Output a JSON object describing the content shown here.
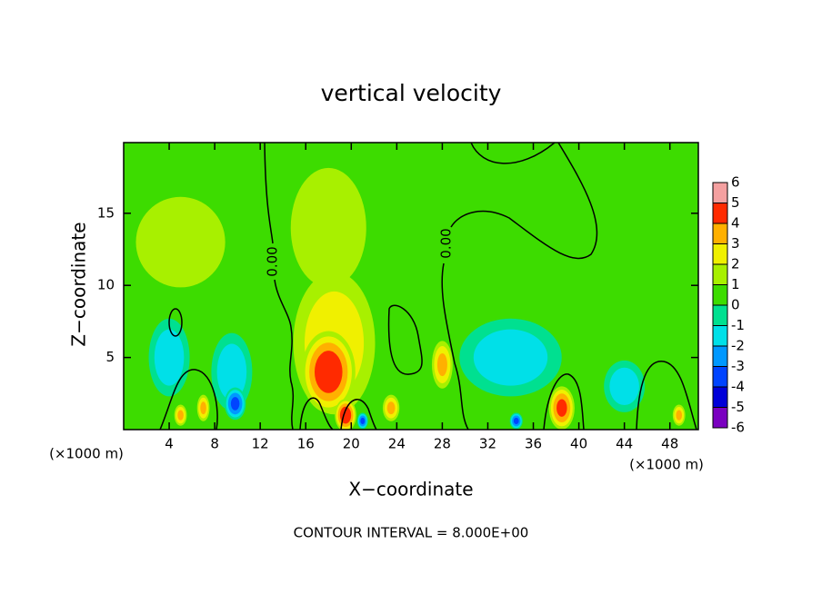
{
  "chart_data": {
    "type": "contour",
    "title": "vertical velocity",
    "xlabel": "X−coordinate",
    "ylabel": "Z−coordinate",
    "unit_label": "(×1000 m)",
    "footnote": "CONTOUR INTERVAL = 8.000E+00",
    "contour_labels": [
      "0.00",
      "0.00"
    ],
    "xlim": [
      0,
      50.5
    ],
    "xticks": [
      4,
      8,
      12,
      16,
      20,
      24,
      28,
      32,
      36,
      40,
      44,
      48
    ],
    "ylim": [
      0,
      19.9
    ],
    "yticks": [
      5,
      10,
      15
    ],
    "background_value": 0.5,
    "levels": [
      -6,
      -5,
      -4,
      -3,
      -2,
      -1,
      0,
      1,
      2,
      3,
      4,
      5,
      6
    ],
    "colors": [
      "#7a00c0",
      "#0000d8",
      "#0044ff",
      "#0098ff",
      "#00e0e8",
      "#00e090",
      "#3ddc00",
      "#a8f000",
      "#f0f000",
      "#ffb000",
      "#ff2a00",
      "#f4a0a0"
    ],
    "blobs": [
      {
        "x": 18.5,
        "z": 6,
        "value": 2.5,
        "rx": 4,
        "rz": 5.5
      },
      {
        "x": 18,
        "z": 4,
        "value": 4.5,
        "rx": 2.5,
        "rz": 3
      },
      {
        "x": 19.5,
        "z": 1,
        "value": 4.5,
        "rx": 1,
        "rz": 1.2
      },
      {
        "x": 38.5,
        "z": 1.5,
        "value": 4,
        "rx": 1.2,
        "rz": 1.6
      },
      {
        "x": 23.5,
        "z": 1.5,
        "value": 3,
        "rx": 0.8,
        "rz": 1
      },
      {
        "x": 28,
        "z": 4.5,
        "value": 3,
        "rx": 1,
        "rz": 1.8
      },
      {
        "x": 5,
        "z": 1,
        "value": 3,
        "rx": 0.6,
        "rz": 0.8
      },
      {
        "x": 7,
        "z": 1.5,
        "value": 3,
        "rx": 0.6,
        "rz": 1
      },
      {
        "x": 48.8,
        "z": 1,
        "value": 3,
        "rx": 0.6,
        "rz": 0.8
      },
      {
        "x": 18,
        "z": 14,
        "value": 1.5,
        "rx": 4,
        "rz": 5
      },
      {
        "x": 5,
        "z": 13,
        "value": 1.2,
        "rx": 5,
        "rz": 4
      },
      {
        "x": 9.5,
        "z": 4,
        "value": -1.5,
        "rx": 2,
        "rz": 3
      },
      {
        "x": 4,
        "z": 5,
        "value": -1.5,
        "rx": 2,
        "rz": 3
      },
      {
        "x": 34,
        "z": 5,
        "value": -1.5,
        "rx": 5,
        "rz": 3
      },
      {
        "x": 44,
        "z": 3,
        "value": -1.5,
        "rx": 2,
        "rz": 2
      },
      {
        "x": 9.8,
        "z": 1.8,
        "value": -3,
        "rx": 1,
        "rz": 1.2
      },
      {
        "x": 34.5,
        "z": 0.6,
        "value": -3,
        "rx": 0.6,
        "rz": 0.6
      },
      {
        "x": 21,
        "z": 0.6,
        "value": -3,
        "rx": 0.5,
        "rz": 0.6
      }
    ]
  }
}
